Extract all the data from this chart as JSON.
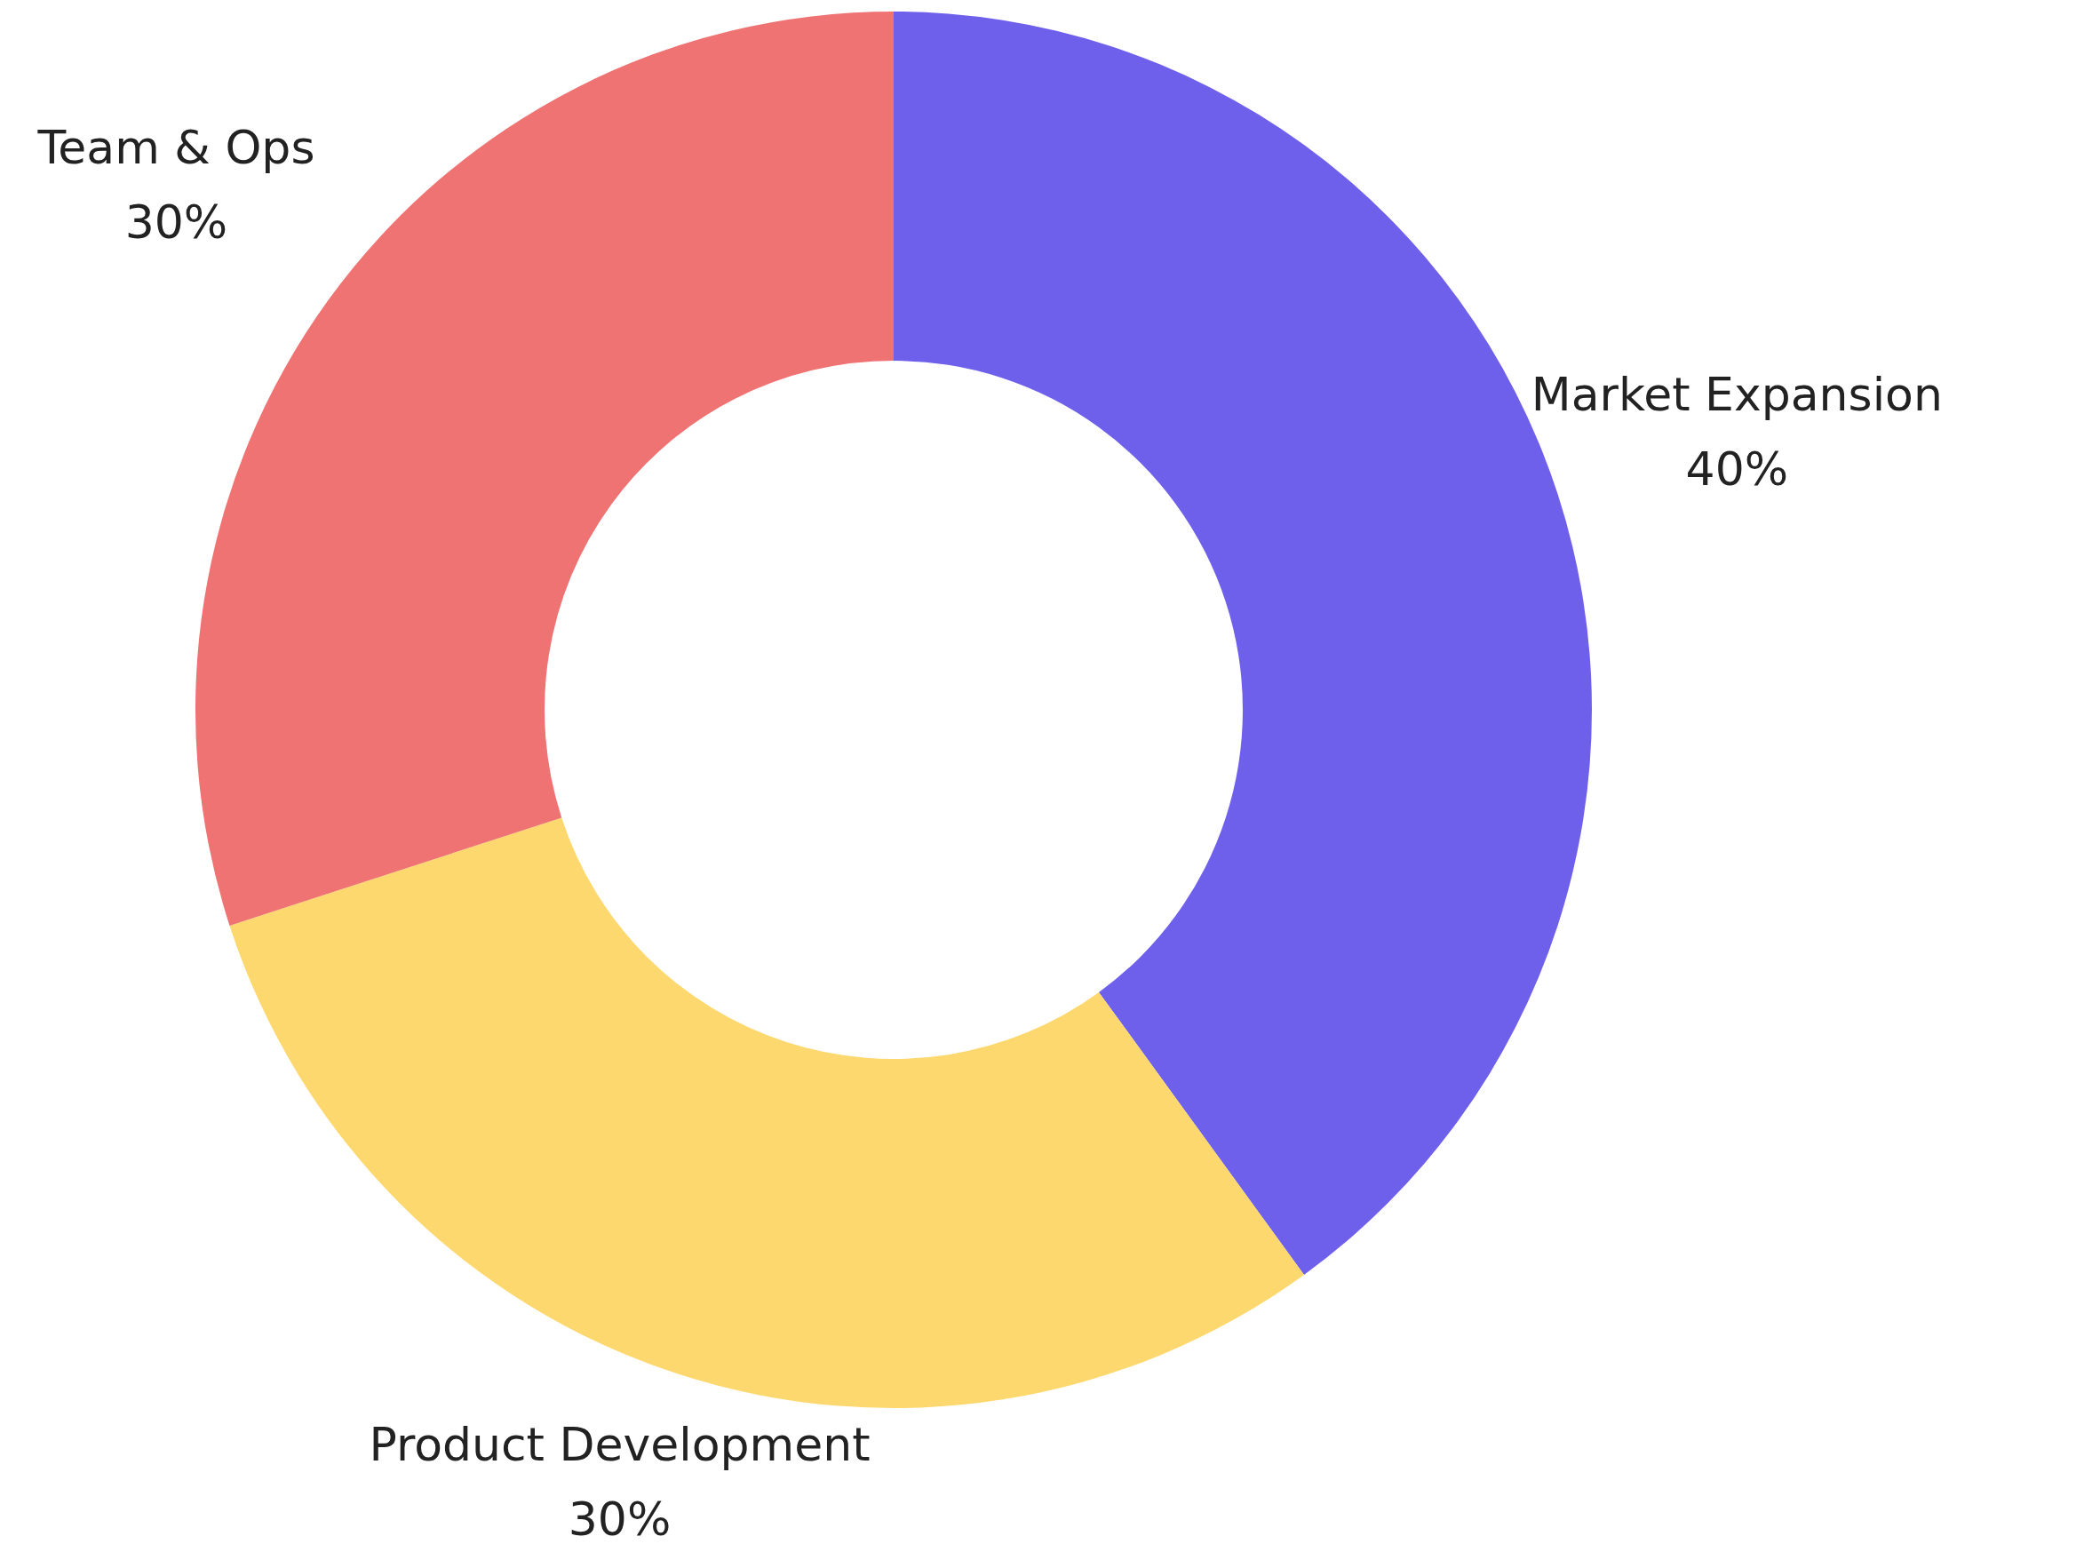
{
  "chart_data": {
    "type": "donut",
    "categories": [
      "Market Expansion",
      "Product Development",
      "Team & Ops"
    ],
    "values": [
      40,
      30,
      30
    ],
    "colors": [
      "#6f60ec",
      "#fdd86f",
      "#ef7373"
    ],
    "value_labels": [
      "40%",
      "30%",
      "30%"
    ],
    "legend": false
  }
}
